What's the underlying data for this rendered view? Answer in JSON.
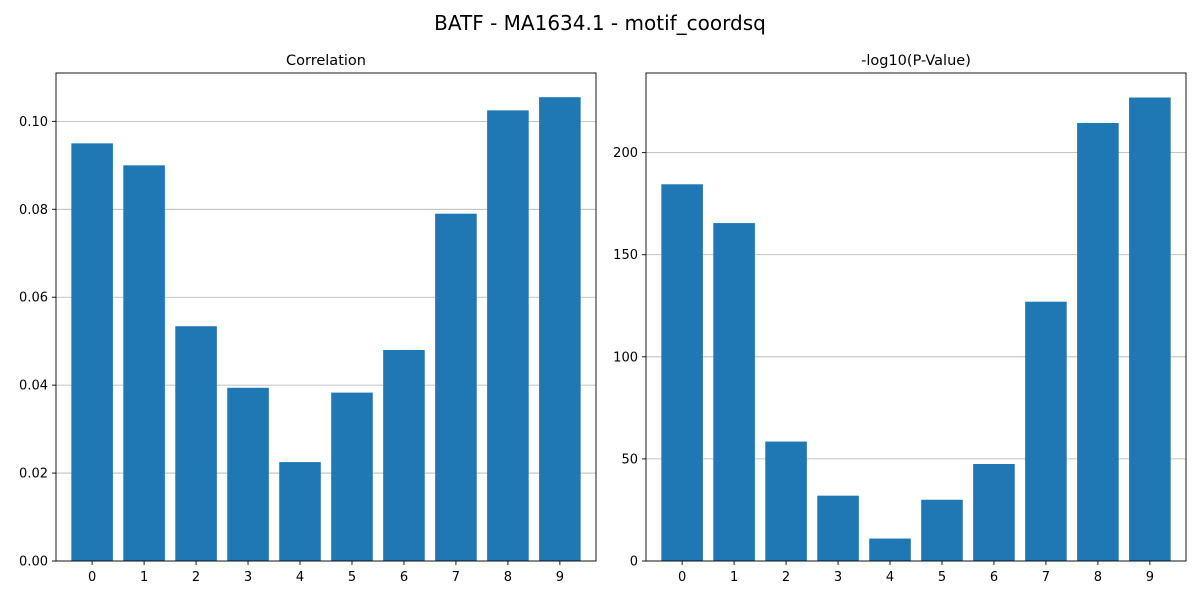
{
  "figure_title": "BATF - MA1634.1 - motif_coordsq",
  "colors": {
    "bar": "#1f77b4",
    "grid": "#b0b0b0",
    "axis": "#000000"
  },
  "chart_data": [
    {
      "type": "bar",
      "title": "Correlation",
      "xlabel": "",
      "ylabel": "",
      "categories": [
        "0",
        "1",
        "2",
        "3",
        "4",
        "5",
        "6",
        "7",
        "8",
        "9"
      ],
      "values": [
        0.095,
        0.09,
        0.0534,
        0.0394,
        0.0225,
        0.0383,
        0.048,
        0.079,
        0.1025,
        0.1055
      ],
      "ylim": [
        0,
        0.111
      ],
      "yticks": [
        0.0,
        0.02,
        0.04,
        0.06,
        0.08,
        0.1
      ],
      "ytick_labels": [
        "0.00",
        "0.02",
        "0.04",
        "0.06",
        "0.08",
        "0.10"
      ],
      "grid": "y",
      "legend": "none"
    },
    {
      "type": "bar",
      "title": "-log10(P-Value)",
      "xlabel": "",
      "ylabel": "",
      "categories": [
        "0",
        "1",
        "2",
        "3",
        "4",
        "5",
        "6",
        "7",
        "8",
        "9"
      ],
      "values": [
        184.5,
        165.5,
        58.5,
        32.0,
        11.0,
        30.0,
        47.5,
        127.0,
        214.5,
        227.0
      ],
      "ylim": [
        0,
        239
      ],
      "yticks": [
        0,
        50,
        100,
        150,
        200
      ],
      "ytick_labels": [
        "0",
        "50",
        "100",
        "150",
        "200"
      ],
      "grid": "y",
      "legend": "none"
    }
  ]
}
